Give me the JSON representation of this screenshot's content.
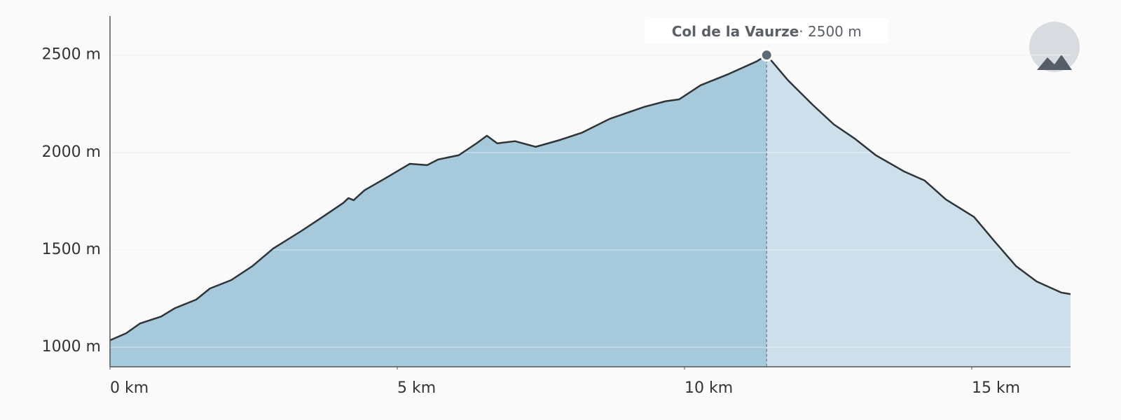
{
  "chart_data": {
    "type": "area",
    "x": [
      0,
      0.28,
      0.52,
      0.89,
      1.13,
      1.5,
      1.74,
      2.11,
      2.48,
      2.84,
      3.33,
      3.7,
      4.06,
      4.15,
      4.24,
      4.43,
      4.79,
      5.22,
      5.52,
      5.71,
      6.07,
      6.38,
      6.56,
      6.74,
      7.05,
      7.41,
      7.84,
      8.21,
      8.7,
      9.3,
      9.67,
      9.91,
      10.28,
      10.77,
      11.26,
      11.43,
      11.8,
      12.23,
      12.6,
      12.96,
      13.33,
      13.82,
      14.18,
      14.55,
      15.04,
      15.4,
      15.77,
      16.13,
      16.56,
      16.72
    ],
    "y": [
      1036,
      1072,
      1122,
      1158,
      1201,
      1245,
      1302,
      1345,
      1417,
      1507,
      1597,
      1669,
      1741,
      1766,
      1755,
      1806,
      1867,
      1942,
      1935,
      1964,
      1986,
      2047,
      2086,
      2047,
      2058,
      2029,
      2065,
      2101,
      2173,
      2234,
      2263,
      2273,
      2345,
      2403,
      2468,
      2500,
      2371,
      2245,
      2144,
      2072,
      1986,
      1903,
      1856,
      1759,
      1669,
      1543,
      1417,
      1338,
      1281,
      1273
    ],
    "xlim": [
      0,
      16.72
    ],
    "ylim": [
      900,
      2700
    ],
    "xticks": [
      {
        "value": 0,
        "label": "0 km"
      },
      {
        "value": 5,
        "label": "5 km"
      },
      {
        "value": 10,
        "label": "10 km"
      },
      {
        "value": 15,
        "label": "15 km"
      }
    ],
    "yticks": [
      {
        "value": 1000,
        "label": "1000 m"
      },
      {
        "value": 1500,
        "label": "1500 m"
      },
      {
        "value": 2000,
        "label": "2000 m"
      },
      {
        "value": 2500,
        "label": "2500 m"
      }
    ],
    "grid": true,
    "line_color": "#2f3438",
    "fill_color": "#a7c9dc",
    "fill_color_after": "#cddfea",
    "annotation": {
      "title": "Col de la Vaurze",
      "text": "· 2500 m",
      "x": 11.43,
      "y": 2500
    }
  }
}
